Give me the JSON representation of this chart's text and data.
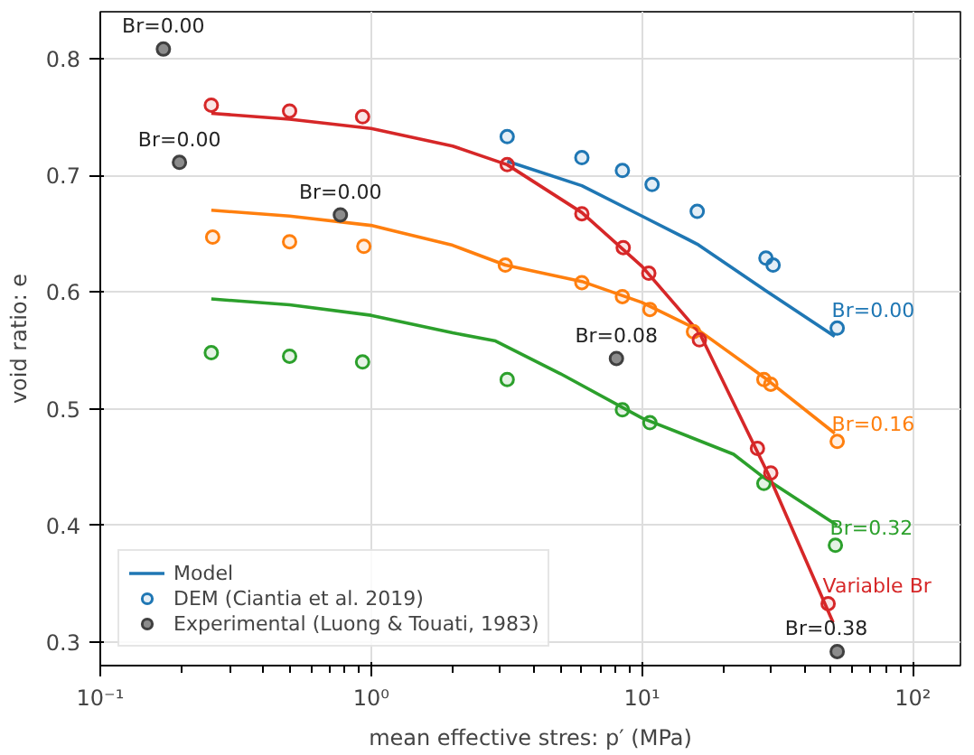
{
  "chart_data": {
    "type": "scatter",
    "xlabel": "mean effective stres: p′ (MPa)",
    "ylabel": "void ratio: e",
    "log": "x",
    "xlim": [
      0.1,
      150
    ],
    "ylim": [
      0.28,
      0.84
    ],
    "xticks": [
      {
        "value": 0.1,
        "label": "10⁻¹"
      },
      {
        "value": 1,
        "label": "10⁰"
      },
      {
        "value": 10,
        "label": "10¹"
      },
      {
        "value": 100,
        "label": "10²"
      }
    ],
    "yticks": [
      0.3,
      0.4,
      0.5,
      0.6,
      0.7,
      0.8
    ],
    "grid": true,
    "legend": "bottom left",
    "marker": "circle",
    "series": [
      {
        "name": "Model",
        "type": "line",
        "marker": "none",
        "line_style": "solid",
        "color": "#1f77b4",
        "x": [
          3.18,
          6,
          10,
          16,
          28.7,
          51.5
        ],
        "values": [
          0.712,
          0.691,
          0.665,
          0.641,
          0.601,
          0.562
        ]
      },
      {
        "type": "line",
        "marker": "none",
        "line_style": "solid",
        "color": "#ff7f0e",
        "x": [
          0.257,
          0.5,
          1,
          2,
          3.13,
          6,
          10,
          16,
          28.2,
          51.5
        ],
        "values": [
          0.67,
          0.665,
          0.657,
          0.64,
          0.623,
          0.609,
          0.591,
          0.568,
          0.527,
          0.479
        ]
      },
      {
        "type": "line",
        "marker": "none",
        "line_style": "solid",
        "color": "#2ca02c",
        "x": [
          0.257,
          0.5,
          1,
          2,
          2.88,
          5,
          10,
          21.8,
          28.2,
          52.6
        ],
        "values": [
          0.594,
          0.589,
          0.58,
          0.565,
          0.558,
          0.53,
          0.492,
          0.461,
          0.441,
          0.4
        ]
      },
      {
        "type": "line",
        "marker": "none",
        "line_style": "solid",
        "color": "#d62728",
        "x": [
          0.257,
          0.5,
          1,
          2,
          3.18,
          6,
          10,
          16.3,
          29.4,
          50.8
        ],
        "values": [
          0.753,
          0.748,
          0.74,
          0.725,
          0.709,
          0.668,
          0.622,
          0.565,
          0.443,
          0.317
        ]
      },
      {
        "name": "DEM (Ciantia et al. 2019)",
        "color": "#1f77b4",
        "x": [
          3.18,
          6.0,
          8.47,
          10.9,
          16.0,
          28.7,
          30.5,
          52.6
        ],
        "values": [
          0.733,
          0.715,
          0.704,
          0.692,
          0.669,
          0.629,
          0.623,
          0.569
        ]
      },
      {
        "color": "#ff7f0e",
        "x": [
          0.26,
          0.5,
          0.94,
          3.13,
          6.0,
          8.47,
          10.7,
          15.5,
          28.2,
          29.9,
          52.6
        ],
        "values": [
          0.647,
          0.643,
          0.639,
          0.623,
          0.608,
          0.596,
          0.585,
          0.566,
          0.525,
          0.521,
          0.472
        ]
      },
      {
        "color": "#2ca02c",
        "x": [
          0.257,
          0.5,
          0.93,
          3.18,
          8.47,
          10.7,
          28.2,
          51.8
        ],
        "values": [
          0.548,
          0.545,
          0.54,
          0.525,
          0.499,
          0.488,
          0.436,
          0.383
        ]
      },
      {
        "color": "#d62728",
        "x": [
          0.257,
          0.5,
          0.93,
          3.18,
          6.0,
          8.53,
          10.6,
          16.3,
          26.7,
          29.9,
          48.7
        ],
        "values": [
          0.76,
          0.755,
          0.75,
          0.709,
          0.667,
          0.638,
          0.616,
          0.559,
          0.466,
          0.445,
          0.333
        ]
      },
      {
        "name": "Experimental (Luong & Touati, 1983)",
        "color": "#404040",
        "x": [
          0.171,
          0.196,
          0.77,
          8.05,
          52.6
        ],
        "values": [
          0.808,
          0.711,
          0.666,
          0.543,
          0.292
        ]
      }
    ],
    "annotations": [
      {
        "text": "Br=0.00",
        "x": 0.171,
        "y": 0.808
      },
      {
        "text": "Br=0.00",
        "x": 0.196,
        "y": 0.711
      },
      {
        "text": "Br=0.00",
        "x": 0.77,
        "y": 0.666
      },
      {
        "text": "Br=0.08",
        "x": 8.05,
        "y": 0.543
      },
      {
        "text": "Br=0.38",
        "x": 52.6,
        "y": 0.292
      },
      {
        "text": "Br=0.00",
        "x": 52.6,
        "y": 0.569
      },
      {
        "text": "Br=0.16",
        "x": 52.6,
        "y": 0.472
      },
      {
        "text": "Br=0.32",
        "x": 51.8,
        "y": 0.383
      },
      {
        "text": "Variable Br",
        "x": 48.7,
        "y": 0.333
      }
    ]
  }
}
